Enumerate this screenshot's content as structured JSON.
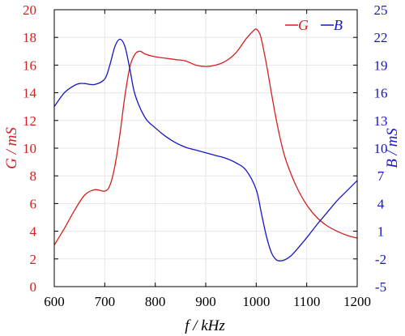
{
  "chart_data": {
    "type": "line",
    "xlabel": "f / kHz",
    "ylabel_left": "G / mS",
    "ylabel_right": "B / mS",
    "xlim": [
      600,
      1200
    ],
    "ylim_left": [
      0,
      20
    ],
    "ylim_right": [
      -5,
      25
    ],
    "x_ticks": [
      "600",
      "700",
      "800",
      "900",
      "1000",
      "1100",
      "1200"
    ],
    "y_left_ticks": [
      "0",
      "2",
      "4",
      "6",
      "8",
      "10",
      "12",
      "14",
      "16",
      "18",
      "20"
    ],
    "y_right_ticks": [
      "-5",
      "-2",
      "1",
      "4",
      "7",
      "10",
      "13",
      "16",
      "19",
      "22",
      "25"
    ],
    "grid": true,
    "legend_position": "top-right",
    "colors": {
      "G": "#d42020",
      "B": "#1616c8"
    },
    "series": [
      {
        "name": "G",
        "axis": "left",
        "x": [
          600,
          620,
          640,
          660,
          680,
          700,
          710,
          720,
          730,
          740,
          750,
          760,
          770,
          780,
          800,
          820,
          840,
          860,
          880,
          900,
          920,
          940,
          960,
          980,
          995,
          1000,
          1005,
          1010,
          1020,
          1030,
          1040,
          1050,
          1060,
          1080,
          1100,
          1120,
          1140,
          1160,
          1180,
          1200
        ],
        "values": [
          3.0,
          4.2,
          5.5,
          6.6,
          7.0,
          6.9,
          7.3,
          8.7,
          11.0,
          13.8,
          15.9,
          16.8,
          17.0,
          16.8,
          16.6,
          16.5,
          16.4,
          16.3,
          16.0,
          15.9,
          16.0,
          16.3,
          16.9,
          17.9,
          18.5,
          18.6,
          18.4,
          17.9,
          16.1,
          14.0,
          12.0,
          10.3,
          9.0,
          7.2,
          5.9,
          5.0,
          4.4,
          4.0,
          3.7,
          3.5
        ]
      },
      {
        "name": "B",
        "axis": "right",
        "x": [
          600,
          620,
          640,
          650,
          660,
          680,
          700,
          710,
          720,
          730,
          740,
          750,
          760,
          780,
          800,
          820,
          840,
          860,
          880,
          900,
          920,
          940,
          960,
          980,
          1000,
          1010,
          1020,
          1030,
          1040,
          1050,
          1060,
          1070,
          1080,
          1100,
          1120,
          1140,
          1160,
          1180,
          1200
        ],
        "values": [
          14.5,
          16.0,
          16.8,
          17.0,
          17.0,
          16.9,
          17.5,
          19.0,
          21.0,
          21.8,
          21.0,
          18.5,
          15.8,
          13.3,
          12.2,
          11.3,
          10.6,
          10.1,
          9.8,
          9.5,
          9.2,
          8.9,
          8.4,
          7.6,
          5.5,
          3.0,
          0.5,
          -1.3,
          -2.1,
          -2.2,
          -2.0,
          -1.6,
          -1.0,
          0.3,
          1.7,
          3.0,
          4.3,
          5.4,
          6.5
        ]
      }
    ]
  }
}
